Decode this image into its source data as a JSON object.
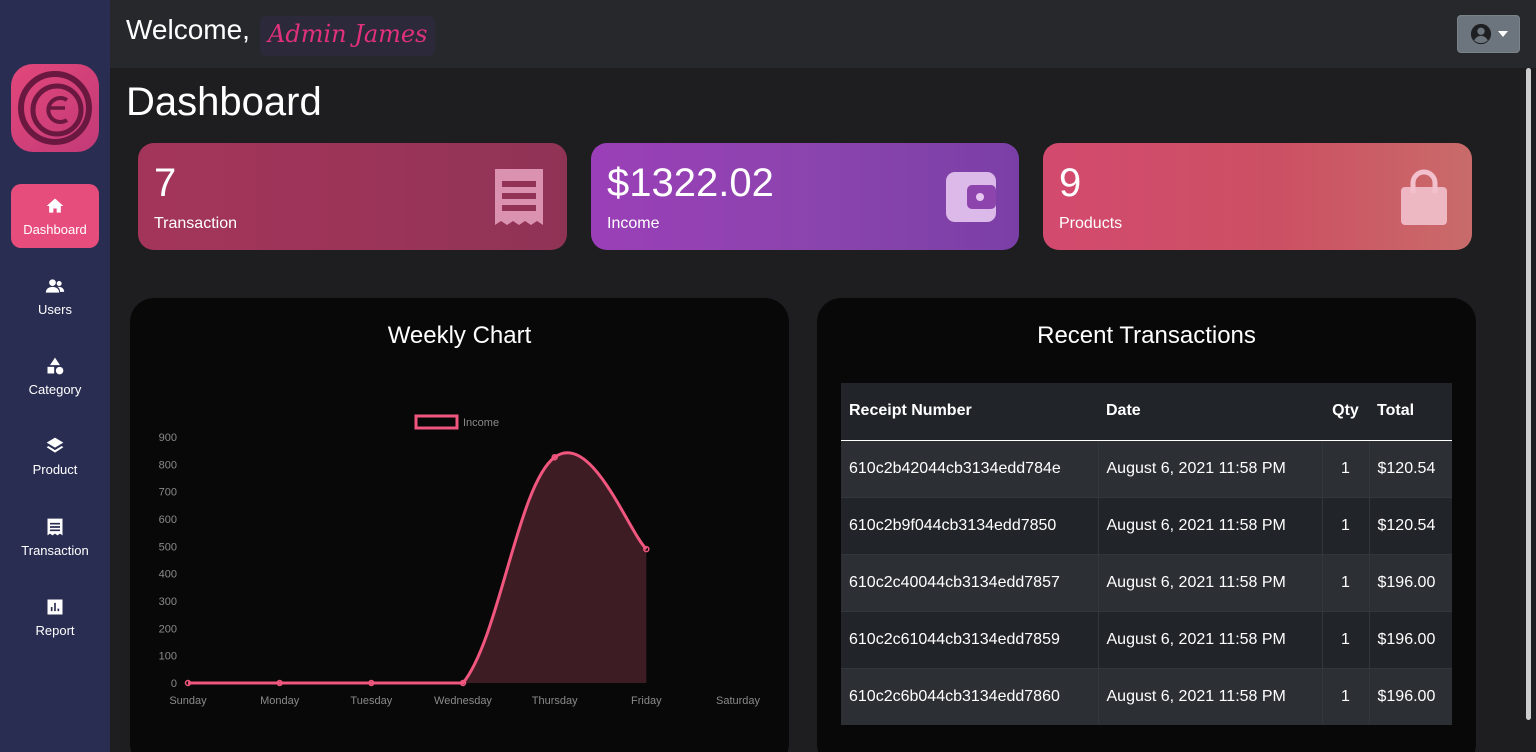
{
  "header": {
    "welcome": "Welcome,",
    "admin_name": "Admin James"
  },
  "page_title": "Dashboard",
  "sidebar": {
    "items": [
      {
        "label": "Dashboard",
        "icon": "home-icon",
        "active": true
      },
      {
        "label": "Users",
        "icon": "users-icon"
      },
      {
        "label": "Category",
        "icon": "shapes-icon"
      },
      {
        "label": "Product",
        "icon": "layers-icon"
      },
      {
        "label": "Transaction",
        "icon": "receipt-icon"
      },
      {
        "label": "Report",
        "icon": "bar-chart-icon"
      }
    ]
  },
  "stats": [
    {
      "value": "7",
      "label": "Transaction",
      "icon": "receipt-icon"
    },
    {
      "value": "$1322.02",
      "label": "Income",
      "icon": "wallet-icon"
    },
    {
      "value": "9",
      "label": "Products",
      "icon": "shopping-bag-icon"
    }
  ],
  "weekly_chart": {
    "title": "Weekly Chart"
  },
  "chart_data": {
    "type": "area",
    "title": "Weekly Chart",
    "categories": [
      "Sunday",
      "Monday",
      "Tuesday",
      "Wednesday",
      "Thursday",
      "Friday",
      "Saturday"
    ],
    "series": [
      {
        "name": "Income",
        "values": [
          0,
          0,
          0,
          0,
          826,
          490,
          null
        ]
      }
    ],
    "yticks": [
      0,
      100,
      200,
      300,
      400,
      500,
      600,
      700,
      800,
      900
    ],
    "ylim": [
      0,
      900
    ],
    "legend": "top-center",
    "colors": {
      "line": "#f0567e",
      "fill": "#3d1c24"
    }
  },
  "recent_transactions": {
    "title": "Recent Transactions",
    "columns": [
      "Receipt Number",
      "Date",
      "Qty",
      "Total"
    ],
    "rows": [
      {
        "receipt": "610c2b42044cb3134edd784e",
        "date": "August 6, 2021 11:58 PM",
        "qty": "1",
        "total": "$120.54"
      },
      {
        "receipt": "610c2b9f044cb3134edd7850",
        "date": "August 6, 2021 11:58 PM",
        "qty": "1",
        "total": "$120.54"
      },
      {
        "receipt": "610c2c40044cb3134edd7857",
        "date": "August 6, 2021 11:58 PM",
        "qty": "1",
        "total": "$196.00"
      },
      {
        "receipt": "610c2c61044cb3134edd7859",
        "date": "August 6, 2021 11:58 PM",
        "qty": "1",
        "total": "$196.00"
      },
      {
        "receipt": "610c2c6b044cb3134edd7860",
        "date": "August 6, 2021 11:58 PM",
        "qty": "1",
        "total": "$196.00"
      }
    ]
  },
  "colors": {
    "sidebar": "#2a2d52",
    "accent": "#e74d7c",
    "background": "#1e1e20",
    "header": "#27282c"
  }
}
